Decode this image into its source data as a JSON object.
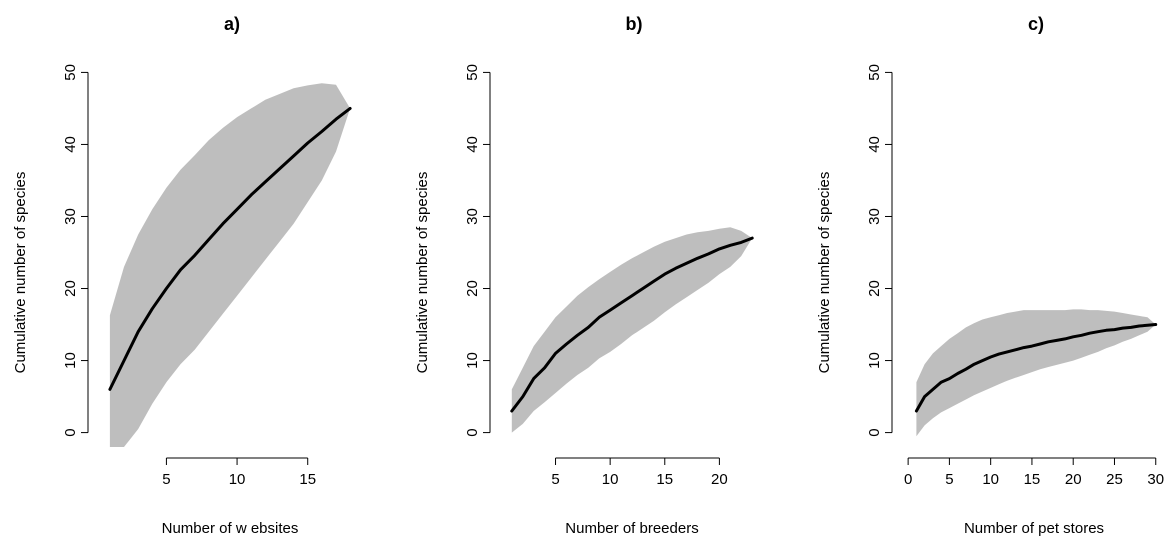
{
  "chart_data": [
    {
      "type": "line",
      "title": "a)",
      "xlabel": "Number of w ebsites",
      "ylabel": "Cumulative number of species",
      "xticks": [
        5,
        10,
        15
      ],
      "yticks": [
        0,
        10,
        20,
        30,
        40,
        50
      ],
      "xlim": [
        0.3,
        18.7
      ],
      "ylim": [
        -2,
        52
      ],
      "band_color": "#bebebe",
      "line_color": "#000000",
      "x": [
        1,
        2,
        3,
        4,
        5,
        6,
        7,
        8,
        9,
        10,
        11,
        12,
        13,
        14,
        15,
        16,
        17,
        18
      ],
      "mean": [
        6,
        10,
        14,
        17.2,
        20,
        22.6,
        24.6,
        26.8,
        29,
        31,
        33,
        34.8,
        36.6,
        38.4,
        40.2,
        41.8,
        43.5,
        45
      ],
      "upper": [
        16.3,
        23,
        27.5,
        31,
        34,
        36.5,
        38.5,
        40.6,
        42.3,
        43.8,
        45,
        46.2,
        47,
        47.8,
        48.2,
        48.5,
        48.3,
        45
      ],
      "lower": [
        -2,
        -2,
        0.5,
        4,
        7,
        9.5,
        11.5,
        14,
        16.5,
        19,
        21.5,
        24,
        26.5,
        29,
        32,
        35,
        39,
        45
      ]
    },
    {
      "type": "line",
      "title": "b)",
      "xlabel": "Number of breeders",
      "ylabel": "Cumulative number of species",
      "xticks": [
        5,
        10,
        15,
        20
      ],
      "yticks": [
        0,
        10,
        20,
        30,
        40,
        50
      ],
      "xlim": [
        0.1,
        23.9
      ],
      "ylim": [
        -2,
        52
      ],
      "band_color": "#bebebe",
      "line_color": "#000000",
      "x": [
        1,
        2,
        3,
        4,
        5,
        6,
        7,
        8,
        9,
        10,
        11,
        12,
        13,
        14,
        15,
        16,
        17,
        18,
        19,
        20,
        21,
        22,
        23
      ],
      "mean": [
        3,
        5,
        7.5,
        9,
        11,
        12.3,
        13.5,
        14.6,
        16,
        17,
        18,
        19,
        20,
        21,
        22,
        22.8,
        23.5,
        24.2,
        24.8,
        25.5,
        26,
        26.4,
        27
      ],
      "upper": [
        6,
        9,
        12,
        14,
        16,
        17.5,
        19,
        20.2,
        21.3,
        22.3,
        23.3,
        24.2,
        25,
        25.8,
        26.5,
        27,
        27.5,
        27.8,
        28,
        28.3,
        28.5,
        28,
        27
      ],
      "lower": [
        0,
        1.2,
        3,
        4.2,
        5.5,
        6.8,
        8,
        9,
        10.3,
        11.2,
        12.3,
        13.5,
        14.5,
        15.5,
        16.7,
        17.8,
        18.8,
        19.8,
        20.8,
        22,
        23,
        24.5,
        27
      ]
    },
    {
      "type": "line",
      "title": "c)",
      "xlabel": "Number of pet stores",
      "ylabel": "Cumulative number of species",
      "xticks": [
        0,
        5,
        10,
        15,
        20,
        25,
        30
      ],
      "yticks": [
        0,
        10,
        20,
        30,
        40,
        50
      ],
      "xlim": [
        -0.5,
        31
      ],
      "ylim": [
        -2,
        52
      ],
      "band_color": "#bebebe",
      "line_color": "#000000",
      "x": [
        1,
        2,
        3,
        4,
        5,
        6,
        7,
        8,
        9,
        10,
        11,
        12,
        13,
        14,
        15,
        16,
        17,
        18,
        19,
        20,
        21,
        22,
        23,
        24,
        25,
        26,
        27,
        28,
        29,
        30
      ],
      "mean": [
        3,
        5,
        6,
        7,
        7.5,
        8.2,
        8.8,
        9.5,
        10,
        10.5,
        10.9,
        11.2,
        11.5,
        11.8,
        12,
        12.3,
        12.6,
        12.8,
        13,
        13.3,
        13.5,
        13.8,
        14,
        14.2,
        14.3,
        14.5,
        14.6,
        14.8,
        14.9,
        15
      ],
      "upper": [
        7,
        9.5,
        11,
        12,
        13,
        13.8,
        14.6,
        15.2,
        15.7,
        16,
        16.3,
        16.6,
        16.8,
        17,
        17,
        17,
        17,
        17,
        17,
        17.1,
        17.1,
        17,
        17,
        16.9,
        16.8,
        16.6,
        16.4,
        16.2,
        16,
        15
      ],
      "lower": [
        -0.5,
        1,
        2,
        2.8,
        3.4,
        4,
        4.6,
        5.2,
        5.7,
        6.2,
        6.7,
        7.2,
        7.6,
        8,
        8.4,
        8.8,
        9.1,
        9.4,
        9.7,
        10,
        10.4,
        10.8,
        11.2,
        11.7,
        12.1,
        12.6,
        13,
        13.5,
        14,
        15
      ]
    }
  ]
}
